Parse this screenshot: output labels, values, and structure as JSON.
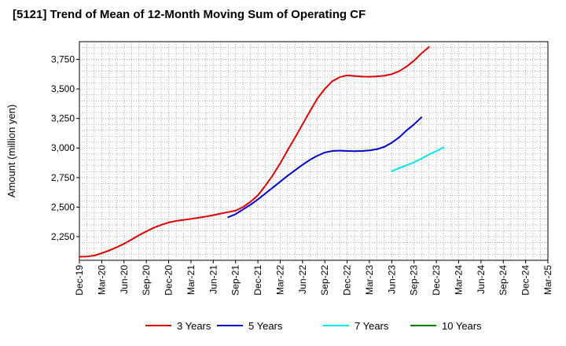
{
  "chart_data": {
    "type": "line",
    "title": "[5121]  Trend of Mean of 12-Month Moving Sum of Operating CF",
    "xlabel": "",
    "ylabel": "Amount (million yen)",
    "ylim": [
      2050,
      3900
    ],
    "yticks": [
      2250,
      2500,
      2750,
      3000,
      3250,
      3500,
      3750
    ],
    "ytick_labels": [
      "2,250",
      "2,500",
      "2,750",
      "3,000",
      "3,250",
      "3,500",
      "3,750"
    ],
    "x_categories": [
      "Dec-19",
      "Mar-20",
      "Jun-20",
      "Sep-20",
      "Dec-20",
      "Mar-21",
      "Jun-21",
      "Sep-21",
      "Dec-21",
      "Mar-22",
      "Jun-22",
      "Sep-22",
      "Dec-22",
      "Mar-23",
      "Jun-23",
      "Sep-23",
      "Dec-23",
      "Mar-24",
      "Jun-24",
      "Sep-24",
      "Dec-24",
      "Mar-25"
    ],
    "grid": true,
    "legend_position": "bottom",
    "series": [
      {
        "name": "3 Years",
        "color": "#dd0000",
        "points": [
          [
            0,
            2080
          ],
          [
            0.33,
            2082
          ],
          [
            0.67,
            2090
          ],
          [
            1,
            2110
          ],
          [
            1.33,
            2133
          ],
          [
            1.67,
            2160
          ],
          [
            2,
            2190
          ],
          [
            2.33,
            2225
          ],
          [
            2.67,
            2262
          ],
          [
            3,
            2295
          ],
          [
            3.33,
            2325
          ],
          [
            3.67,
            2350
          ],
          [
            4,
            2370
          ],
          [
            4.33,
            2383
          ],
          [
            4.67,
            2392
          ],
          [
            5,
            2400
          ],
          [
            5.33,
            2410
          ],
          [
            5.67,
            2420
          ],
          [
            6,
            2432
          ],
          [
            6.33,
            2445
          ],
          [
            6.67,
            2458
          ],
          [
            7,
            2470
          ],
          [
            7.33,
            2500
          ],
          [
            7.67,
            2545
          ],
          [
            8,
            2600
          ],
          [
            8.33,
            2680
          ],
          [
            8.67,
            2770
          ],
          [
            9,
            2870
          ],
          [
            9.33,
            2980
          ],
          [
            9.67,
            3090
          ],
          [
            10,
            3200
          ],
          [
            10.33,
            3310
          ],
          [
            10.67,
            3420
          ],
          [
            11,
            3500
          ],
          [
            11.33,
            3565
          ],
          [
            11.67,
            3600
          ],
          [
            12,
            3615
          ],
          [
            12.33,
            3610
          ],
          [
            12.67,
            3605
          ],
          [
            13,
            3603
          ],
          [
            13.33,
            3606
          ],
          [
            13.67,
            3612
          ],
          [
            14,
            3625
          ],
          [
            14.33,
            3650
          ],
          [
            14.67,
            3690
          ],
          [
            15,
            3740
          ],
          [
            15.33,
            3800
          ],
          [
            15.67,
            3855
          ]
        ]
      },
      {
        "name": "5 Years",
        "color": "#0000cc",
        "points": [
          [
            6.67,
            2415
          ],
          [
            7,
            2440
          ],
          [
            7.33,
            2480
          ],
          [
            7.67,
            2520
          ],
          [
            8,
            2565
          ],
          [
            8.33,
            2615
          ],
          [
            8.67,
            2665
          ],
          [
            9,
            2715
          ],
          [
            9.33,
            2765
          ],
          [
            9.67,
            2812
          ],
          [
            10,
            2858
          ],
          [
            10.33,
            2900
          ],
          [
            10.67,
            2935
          ],
          [
            11,
            2962
          ],
          [
            11.33,
            2975
          ],
          [
            11.67,
            2978
          ],
          [
            12,
            2975
          ],
          [
            12.33,
            2973
          ],
          [
            12.67,
            2975
          ],
          [
            13,
            2980
          ],
          [
            13.33,
            2990
          ],
          [
            13.67,
            3010
          ],
          [
            14,
            3045
          ],
          [
            14.33,
            3090
          ],
          [
            14.67,
            3150
          ],
          [
            15,
            3200
          ],
          [
            15.33,
            3260
          ]
        ]
      },
      {
        "name": "7 Years",
        "color": "#00e5ee",
        "points": [
          [
            14,
            2805
          ],
          [
            14.33,
            2830
          ],
          [
            14.67,
            2855
          ],
          [
            15,
            2880
          ],
          [
            15.33,
            2910
          ],
          [
            15.67,
            2945
          ],
          [
            16,
            2975
          ],
          [
            16.33,
            3005
          ]
        ]
      },
      {
        "name": "10 Years",
        "color": "#008000",
        "points": []
      }
    ]
  }
}
